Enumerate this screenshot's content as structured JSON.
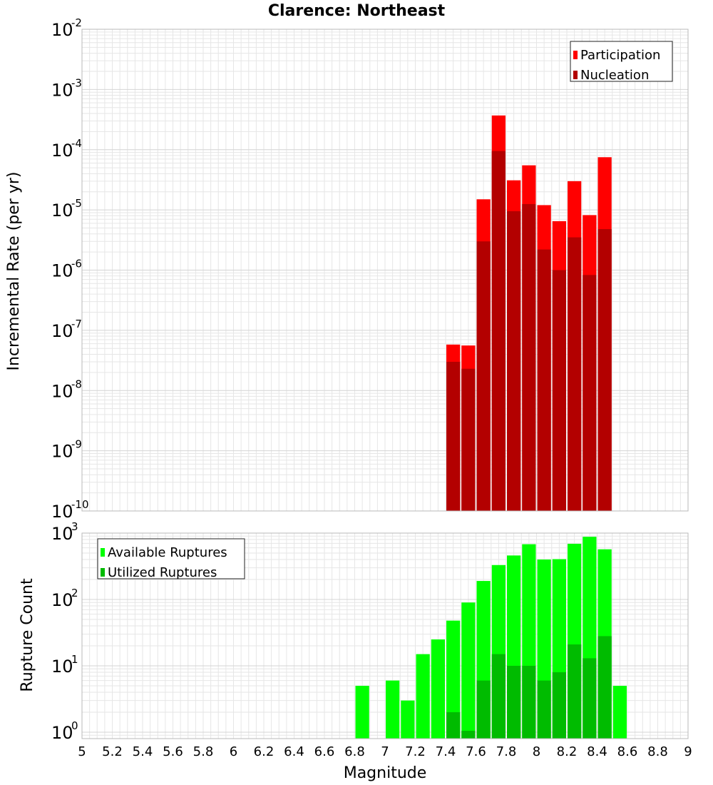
{
  "title": "Clarence: Northeast",
  "xlabel": "Magnitude",
  "colors": {
    "participation": "#ff0000",
    "nucleation": "#b30000",
    "available": "#00ff00",
    "utilized": "#00bb00",
    "grid": "#e6e6e6",
    "frame": "#b8b8b8"
  },
  "chart_data": [
    {
      "type": "bar",
      "ylabel": "Incremental Rate (per yr)",
      "yscale": "log",
      "ylim": [
        1e-10,
        0.01
      ],
      "xlim": [
        5,
        9
      ],
      "bin_width": 0.1,
      "legend_position": "top-right",
      "y_tick_exponents": [
        "-2",
        "-3",
        "-4",
        "-5",
        "-6",
        "-7",
        "-8",
        "-9",
        "-10"
      ],
      "series": [
        {
          "name": "Participation",
          "x": [
            7.45,
            7.55,
            7.65,
            7.75,
            7.85,
            7.95,
            8.05,
            8.15,
            8.25,
            8.35,
            8.45
          ],
          "values": [
            5.8e-08,
            5.6e-08,
            1.5e-05,
            0.00037,
            3.1e-05,
            5.5e-05,
            1.2e-05,
            6.5e-06,
            3e-05,
            8.2e-06,
            7.5e-05
          ]
        },
        {
          "name": "Nucleation",
          "x": [
            7.45,
            7.55,
            7.65,
            7.75,
            7.85,
            7.95,
            8.05,
            8.15,
            8.25,
            8.35,
            8.45
          ],
          "values": [
            3e-08,
            2.3e-08,
            3e-06,
            9.5e-05,
            9.5e-06,
            1.25e-05,
            2.2e-06,
            1e-06,
            3.5e-06,
            8.3e-07,
            4.8e-06
          ]
        }
      ]
    },
    {
      "type": "bar",
      "ylabel": "Rupture Count",
      "yscale": "log",
      "ylim": [
        0.8,
        1000
      ],
      "xlim": [
        5,
        9
      ],
      "bin_width": 0.1,
      "legend_position": "top-left",
      "y_tick_exponents": [
        "3",
        "2",
        "1",
        "0"
      ],
      "series": [
        {
          "name": "Available Ruptures",
          "x": [
            6.85,
            7.05,
            7.15,
            7.25,
            7.35,
            7.45,
            7.55,
            7.65,
            7.75,
            7.85,
            7.95,
            8.05,
            8.15,
            8.25,
            8.35,
            8.45,
            8.55
          ],
          "values": [
            5,
            6,
            3,
            15,
            25,
            48,
            90,
            190,
            330,
            460,
            680,
            400,
            405,
            690,
            880,
            570,
            5
          ]
        },
        {
          "name": "Utilized Ruptures",
          "x": [
            7.45,
            7.55,
            7.65,
            7.75,
            7.85,
            7.95,
            8.05,
            8.15,
            8.25,
            8.35,
            8.45
          ],
          "values": [
            2,
            1.05,
            6,
            15,
            10,
            10,
            6,
            8,
            21,
            13,
            28
          ]
        }
      ]
    }
  ],
  "x_ticks": [
    "5",
    "5.2",
    "5.4",
    "5.6",
    "5.8",
    "6",
    "6.2",
    "6.4",
    "6.6",
    "6.8",
    "7",
    "7.2",
    "7.4",
    "7.6",
    "7.8",
    "8",
    "8.2",
    "8.4",
    "8.6",
    "8.8",
    "9"
  ]
}
